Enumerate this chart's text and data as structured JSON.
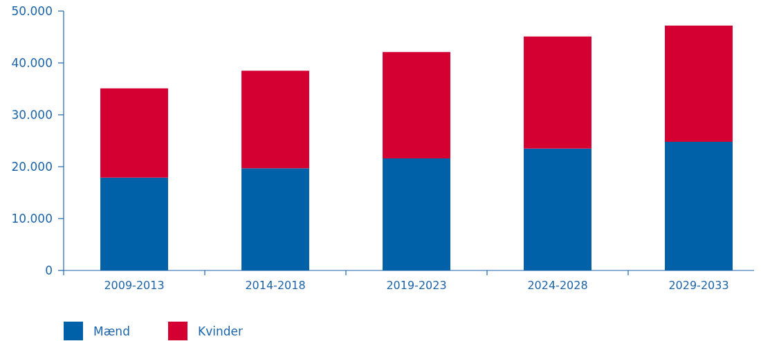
{
  "chart_data": {
    "type": "bar",
    "stacked": true,
    "categories": [
      "2009-2013",
      "2014-2018",
      "2019-2023",
      "2024-2028",
      "2029-2033"
    ],
    "series": [
      {
        "name": "Mænd",
        "color": "#0061a8",
        "values": [
          17900,
          19700,
          21600,
          23500,
          24800
        ]
      },
      {
        "name": "Kvinder",
        "color": "#d50032",
        "values": [
          17200,
          18800,
          20500,
          21600,
          22400
        ]
      }
    ],
    "ylim": [
      0,
      50000
    ],
    "yticks": [
      {
        "value": 0,
        "label": "0"
      },
      {
        "value": 10000,
        "label": "10.000"
      },
      {
        "value": 20000,
        "label": "20.000"
      },
      {
        "value": 30000,
        "label": "30.000"
      },
      {
        "value": 40000,
        "label": "40.000"
      },
      {
        "value": 50000,
        "label": "50.000"
      }
    ],
    "grid": false,
    "legend": "bottom"
  }
}
